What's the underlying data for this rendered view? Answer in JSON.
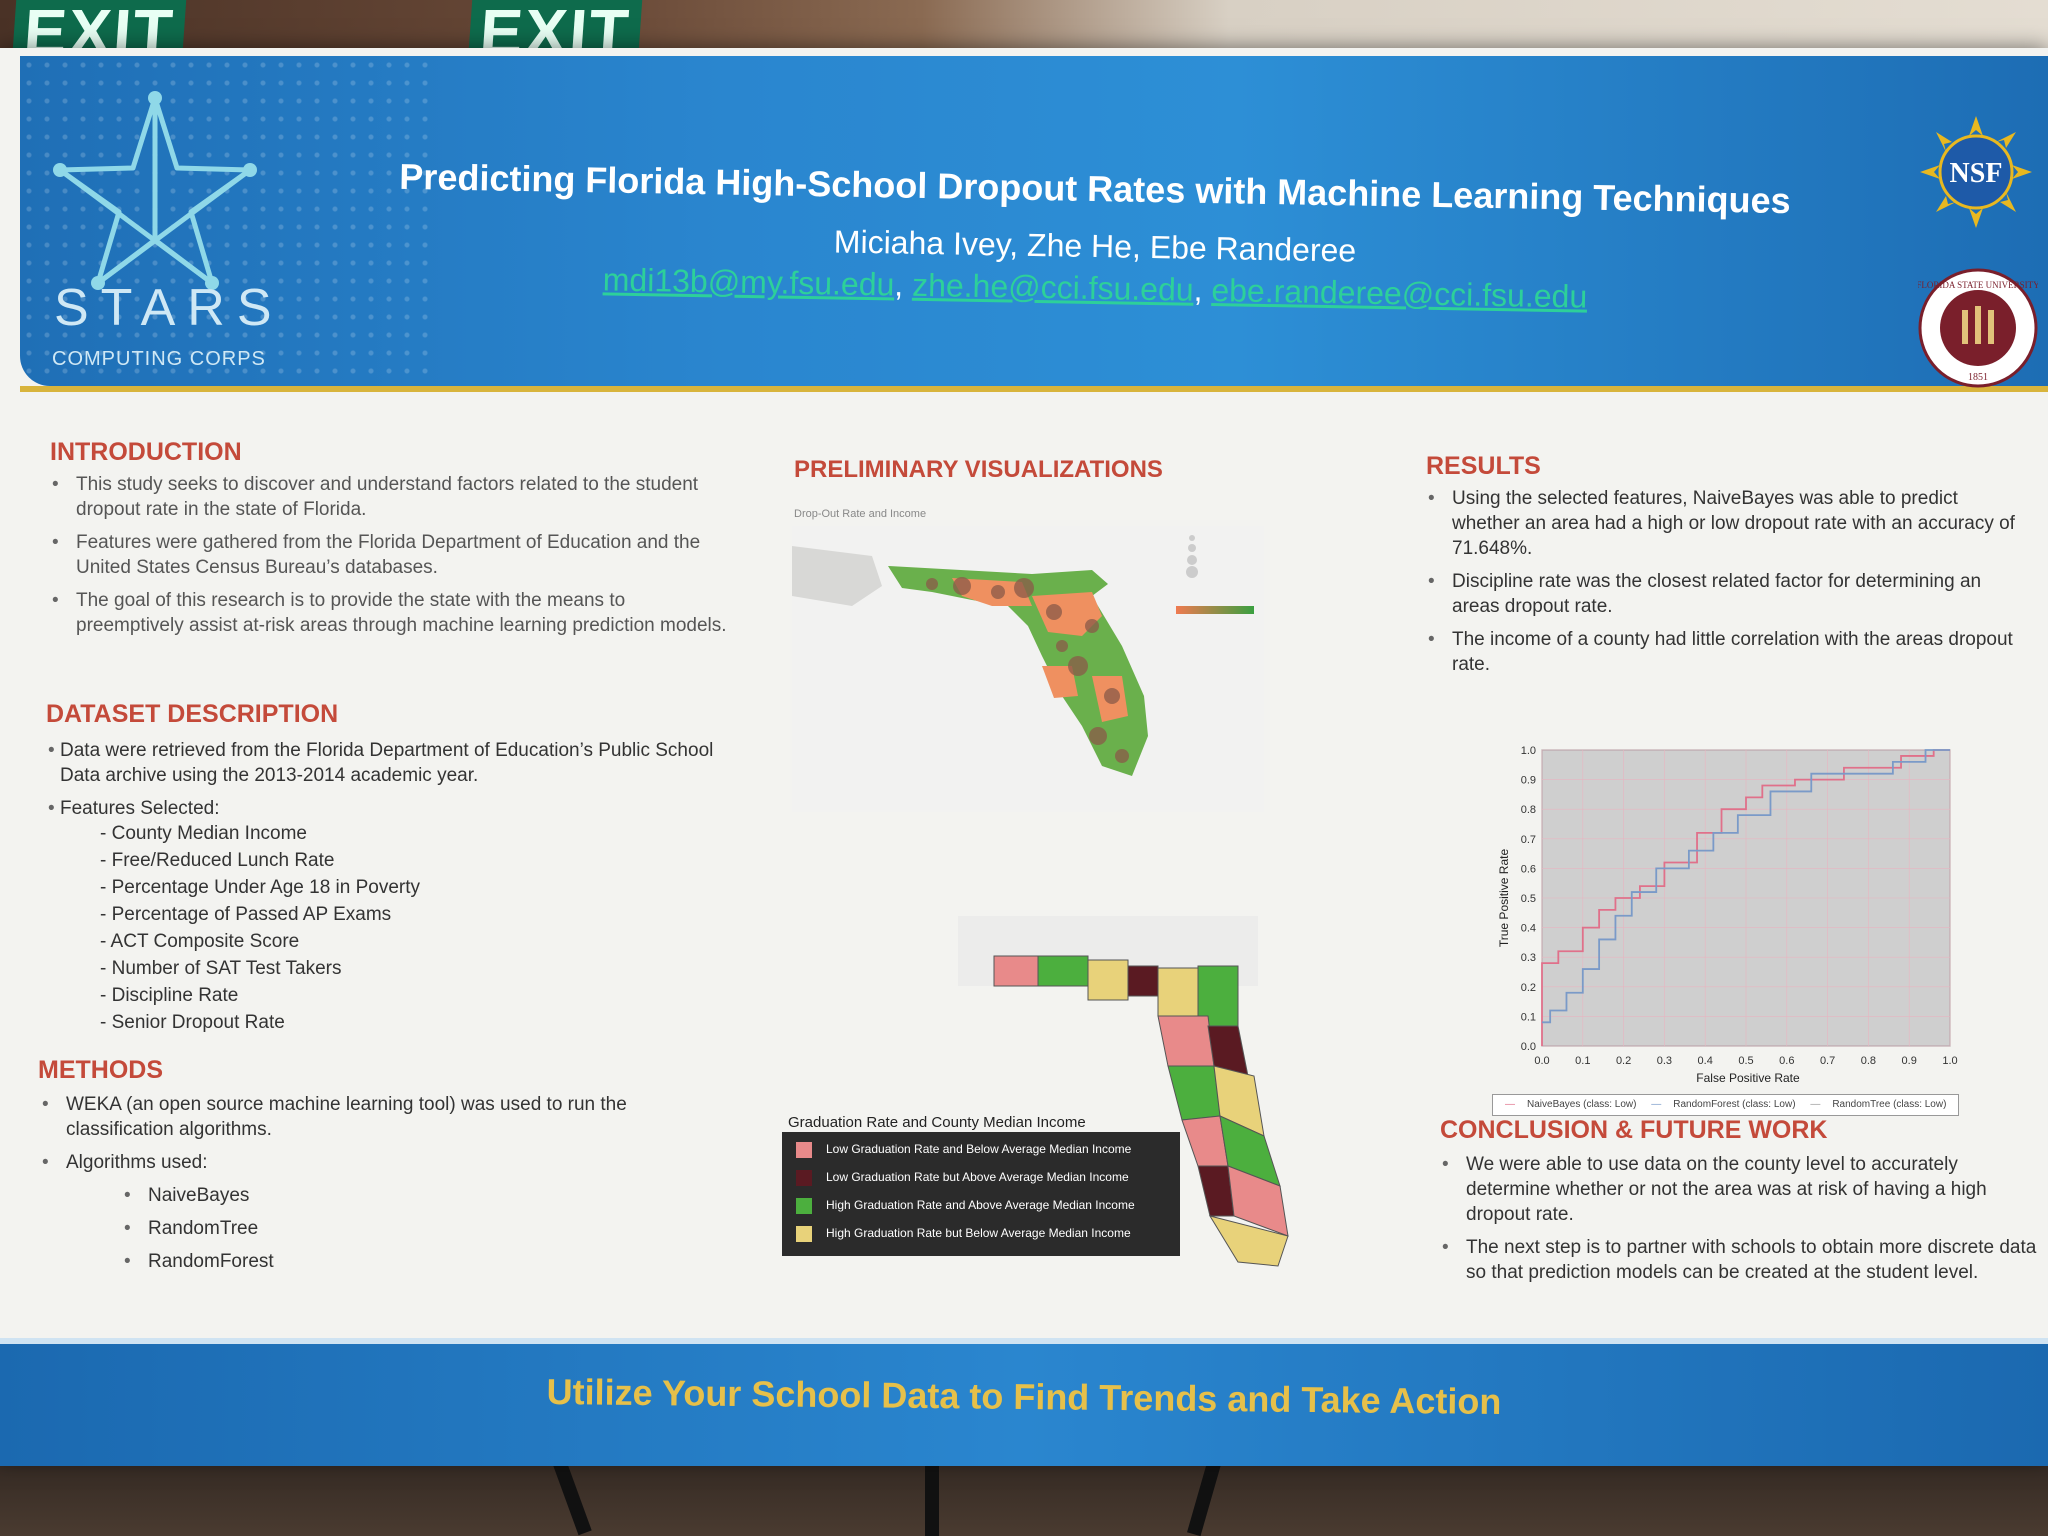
{
  "header": {
    "logo_left_word": "STARS",
    "logo_left_sub": "COMPUTING CORPS",
    "title": "Predicting Florida High-School Dropout Rates with Machine Learning Techniques",
    "authors": "Miciaha Ivey, Zhe He, Ebe Randeree",
    "emails": [
      "mdi13b@my.fsu.edu",
      "zhe.he@cci.fsu.edu",
      "ebe.randeree@cci.fsu.edu"
    ],
    "email_sep": ",",
    "nsf_logo_text": "NSF",
    "seal_text": "FLORIDA STATE UNIVERSITY",
    "seal_year": "1851"
  },
  "introduction": {
    "title": "INTRODUCTION",
    "bullets": [
      "This study seeks to discover and understand factors related to the student dropout rate in the state of Florida.",
      "Features were gathered from the Florida Department of Education and the United States Census Bureau’s databases.",
      "The goal of this research is to provide the state with the means to preemptively assist at-risk areas through machine learning prediction models."
    ]
  },
  "dataset": {
    "title": "DATASET DESCRIPTION",
    "bullet1": "Data were retrieved from the Florida Department of Education’s Public School Data archive using the 2013-2014 academic year.",
    "bullet2": "Features Selected:",
    "features": [
      "- County Median Income",
      "- Free/Reduced Lunch Rate",
      "- Percentage Under Age 18 in Poverty",
      "- Percentage of Passed AP Exams",
      "- ACT Composite Score",
      "- Number of SAT Test Takers",
      "- Discipline Rate",
      "- Senior Dropout Rate"
    ]
  },
  "methods": {
    "title": "METHODS",
    "bullet1": "WEKA (an open source machine learning tool) was used to run the classification algorithms.",
    "bullet2": "Algorithms used:",
    "algorithms": [
      "NaiveBayes",
      "RandomTree",
      "RandomForest"
    ]
  },
  "visualizations": {
    "title": "PRELIMINARY VISUALIZATIONS",
    "map1_caption": "Drop-Out Rate and Income",
    "map2_legend_title": "Graduation Rate and County Median Income",
    "map2_legend": [
      {
        "label": "Low Graduation Rate and Below Average Median Income",
        "color": "#e88a8a"
      },
      {
        "label": "Low Graduation Rate but Above Average Median Income",
        "color": "#5a1a22"
      },
      {
        "label": "High Graduation Rate and Above Average Median Income",
        "color": "#4caf3e"
      },
      {
        "label": "High Graduation Rate but Below Average Median Income",
        "color": "#e8d27a"
      }
    ]
  },
  "results": {
    "title": "RESULTS",
    "bullets": [
      "Using the selected features, NaiveBayes was able to predict whether an area had a high or low dropout rate with an accuracy of 71.648%.",
      "Discipline rate was the closest related factor for determining an areas dropout rate.",
      "The income of a county had little correlation with the areas dropout rate."
    ]
  },
  "conclusion": {
    "title": "CONCLUSION & FUTURE WORK",
    "bullets": [
      "We were able to use data on the county level to accurately determine whether or not the area was at risk of having a high dropout rate.",
      "The next step is to partner with schools to obtain more discrete data so that prediction models can be created at the student level."
    ]
  },
  "chart_data": {
    "type": "line",
    "xlabel": "False Positive Rate",
    "ylabel": "True Positive Rate",
    "xlim": [
      0,
      1
    ],
    "ylim": [
      0,
      1
    ],
    "x_ticks": [
      "0.0",
      "0.1",
      "0.2",
      "0.3",
      "0.4",
      "0.5",
      "0.6",
      "0.7",
      "0.8",
      "0.9",
      "1.0"
    ],
    "y_ticks": [
      "0.0",
      "0.1",
      "0.2",
      "0.3",
      "0.4",
      "0.5",
      "0.6",
      "0.7",
      "0.8",
      "0.9",
      "1.0"
    ],
    "grid": true,
    "legend": "bottom",
    "series": [
      {
        "name": "NaiveBayes (class: Low)",
        "color": "#e0708a",
        "x": [
          0,
          0,
          0.04,
          0.04,
          0.1,
          0.1,
          0.14,
          0.14,
          0.18,
          0.18,
          0.24,
          0.24,
          0.3,
          0.3,
          0.38,
          0.38,
          0.44,
          0.44,
          0.5,
          0.5,
          0.54,
          0.54,
          0.62,
          0.62,
          0.74,
          0.74,
          0.88,
          0.88,
          0.96,
          0.96,
          1.0
        ],
        "y": [
          0,
          0.28,
          0.28,
          0.32,
          0.32,
          0.4,
          0.4,
          0.46,
          0.46,
          0.5,
          0.5,
          0.54,
          0.54,
          0.62,
          0.62,
          0.72,
          0.72,
          0.8,
          0.8,
          0.84,
          0.84,
          0.88,
          0.88,
          0.9,
          0.9,
          0.94,
          0.94,
          0.98,
          0.98,
          1.0,
          1.0
        ]
      },
      {
        "name": "RandomForest (class: Low)",
        "color": "#7a9ac8",
        "x": [
          0,
          0.02,
          0.02,
          0.06,
          0.06,
          0.1,
          0.1,
          0.14,
          0.14,
          0.18,
          0.18,
          0.22,
          0.22,
          0.28,
          0.28,
          0.36,
          0.36,
          0.42,
          0.42,
          0.48,
          0.48,
          0.56,
          0.56,
          0.66,
          0.66,
          0.86,
          0.86,
          0.94,
          0.94,
          1.0
        ],
        "y": [
          0.08,
          0.08,
          0.12,
          0.12,
          0.18,
          0.18,
          0.26,
          0.26,
          0.36,
          0.36,
          0.44,
          0.44,
          0.52,
          0.52,
          0.6,
          0.6,
          0.66,
          0.66,
          0.72,
          0.72,
          0.78,
          0.78,
          0.86,
          0.86,
          0.92,
          0.92,
          0.96,
          0.96,
          1.0,
          1.0
        ]
      },
      {
        "name": "RandomTree (class: Low)",
        "color": "#999999",
        "x": [],
        "y": []
      }
    ]
  },
  "footer": {
    "tagline": "Utilize Your School Data to Find Trends and Take Action"
  }
}
